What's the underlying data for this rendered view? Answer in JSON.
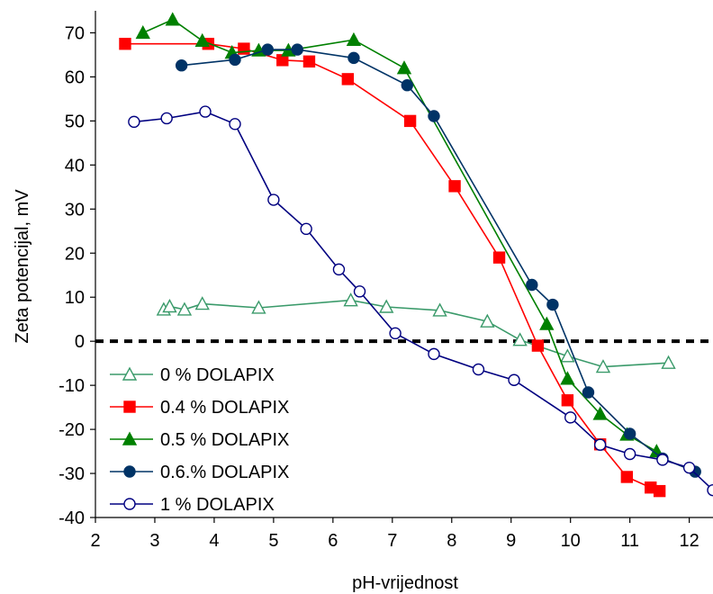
{
  "chart_data": {
    "type": "line",
    "title": "",
    "xlabel": "pH-vrijednost",
    "ylabel": "Zeta potencijal, mV",
    "xlim": [
      2,
      12.4
    ],
    "ylim": [
      -40,
      75
    ],
    "xticks": [
      2,
      3,
      4,
      5,
      6,
      7,
      8,
      9,
      10,
      11,
      12
    ],
    "yticks": [
      -40,
      -30,
      -20,
      -10,
      0,
      10,
      20,
      30,
      40,
      50,
      60,
      70
    ],
    "grid": false,
    "legend_position": "bottom-left",
    "reference_line": {
      "y": 0,
      "style": "dashed",
      "color": "#000000"
    },
    "series": [
      {
        "name": "0 % DOLAPIX",
        "color": "#3a9a6a",
        "marker": "triangle-open",
        "x": [
          3.15,
          3.25,
          3.5,
          3.8,
          4.75,
          6.3,
          6.9,
          7.8,
          8.6,
          9.15,
          9.95,
          10.55,
          11.65
        ],
        "y": [
          7.2,
          7.9,
          7.2,
          8.5,
          7.6,
          9.3,
          7.8,
          7.0,
          4.5,
          0.3,
          -3.4,
          -5.8,
          -4.9
        ]
      },
      {
        "name": "0.4 % DOLAPIX",
        "color": "#ff0000",
        "marker": "square-filled",
        "x": [
          2.5,
          3.9,
          4.5,
          5.15,
          5.6,
          6.25,
          7.3,
          8.05,
          8.8,
          9.45,
          9.95,
          10.5,
          10.95,
          11.35,
          11.5
        ],
        "y": [
          67.5,
          67.5,
          66.4,
          63.8,
          63.5,
          59.5,
          50.0,
          35.2,
          19.0,
          -1.0,
          -13.4,
          -23.4,
          -30.8,
          -33.2,
          -34.0
        ]
      },
      {
        "name": "0.5 % DOLAPIX",
        "color": "#008000",
        "marker": "triangle-filled",
        "x": [
          2.8,
          3.3,
          3.8,
          4.3,
          4.75,
          5.25,
          6.35,
          7.2,
          9.6,
          9.95,
          10.5,
          10.95,
          11.45
        ],
        "y": [
          70.0,
          73.0,
          68.2,
          65.5,
          66.0,
          66.0,
          68.4,
          62.0,
          3.9,
          -8.5,
          -16.5,
          -21.2,
          -25.0
        ]
      },
      {
        "name": "0.6.% DOLAPIX",
        "color": "#003366",
        "marker": "circle-filled",
        "x": [
          3.45,
          4.35,
          4.9,
          5.4,
          6.35,
          7.25,
          7.7,
          9.35,
          9.7,
          10.3,
          11.0,
          11.55,
          12.1
        ],
        "y": [
          62.6,
          63.9,
          66.2,
          66.2,
          64.3,
          58.1,
          51.1,
          12.8,
          8.3,
          -11.6,
          -21.0,
          -26.6,
          -29.6
        ]
      },
      {
        "name": "1 % DOLAPIX",
        "color": "#000080",
        "marker": "circle-open",
        "x": [
          2.65,
          3.2,
          3.85,
          4.35,
          5.0,
          5.55,
          6.1,
          6.45,
          7.05,
          7.7,
          8.45,
          9.05,
          10.0,
          10.5,
          11.0,
          11.55,
          12.0,
          12.4
        ],
        "y": [
          49.8,
          50.6,
          52.1,
          49.3,
          32.1,
          25.5,
          16.3,
          11.3,
          1.8,
          -2.9,
          -6.4,
          -8.8,
          -17.3,
          -23.5,
          -25.6,
          -26.9,
          -28.7,
          -33.8
        ]
      }
    ]
  }
}
